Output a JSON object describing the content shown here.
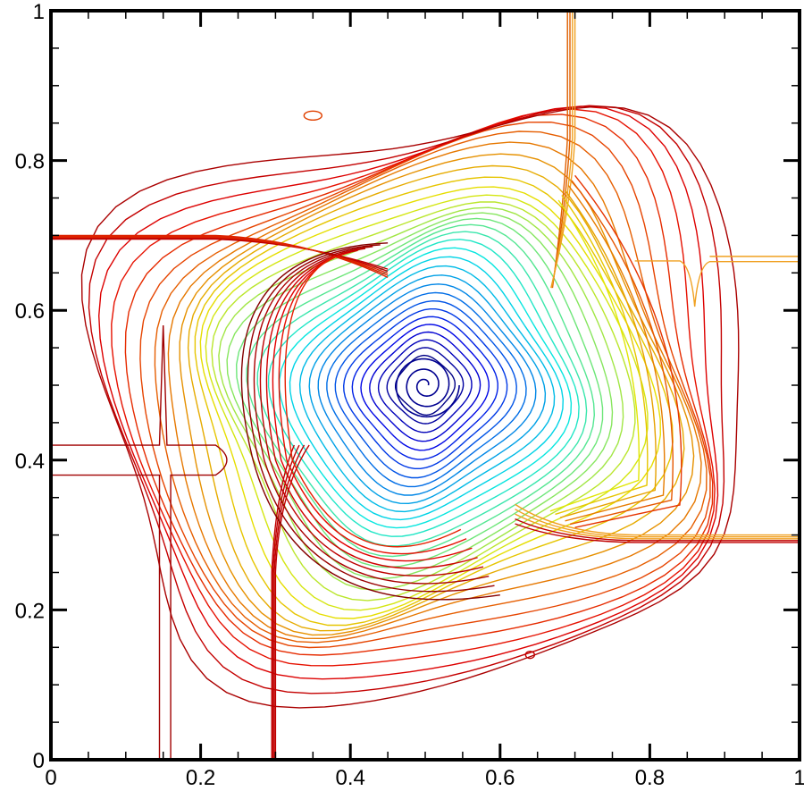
{
  "chart_data": {
    "type": "contour",
    "title": "",
    "xlabel": "",
    "ylabel": "",
    "xlim": [
      0,
      1
    ],
    "ylim": [
      0,
      1
    ],
    "x_ticks": [
      0,
      0.2,
      0.4,
      0.6,
      0.8,
      1
    ],
    "y_ticks": [
      0,
      0.2,
      0.4,
      0.6,
      0.8,
      1
    ],
    "x_tick_labels": [
      "0",
      "0.2",
      "0.4",
      "0.6",
      "0.8",
      "1"
    ],
    "y_tick_labels": [
      "0",
      "0.2",
      "0.4",
      "0.6",
      "0.8",
      "1"
    ],
    "grid": false,
    "legend": "none",
    "colormap": "jet",
    "colors": {
      "low": "#0000c8",
      "mid_low": "#00c8ff",
      "mid": "#60e060",
      "mid_high": "#ffd000",
      "high": "#cc0000"
    },
    "features": {
      "vortex_center": [
        0.5,
        0.5
      ],
      "horizontal_slip_line_left": {
        "y": [
          0.695,
          0.7
        ],
        "x_range": [
          0,
          0.45
        ]
      },
      "horizontal_slip_line_right": {
        "y": [
          0.29,
          0.3
        ],
        "x_range": [
          0.62,
          1.0
        ]
      },
      "vertical_slip_line_top": {
        "x": [
          0.69,
          0.7
        ],
        "y_range": [
          0.83,
          1.0
        ]
      },
      "vertical_slip_line_bottom": {
        "x": [
          0.295,
          0.3
        ],
        "y_range": [
          0,
          0.25
        ]
      },
      "left_shock": {
        "x": [
          0.145,
          0.16
        ],
        "y_range": [
          0,
          0.58
        ]
      },
      "right_shock": {
        "y": [
          0.665,
          0.672
        ],
        "x_range": [
          0.78,
          1.0
        ]
      },
      "small_island_top": [
        0.35,
        0.86
      ],
      "small_island_bottom": [
        0.64,
        0.14
      ]
    }
  }
}
